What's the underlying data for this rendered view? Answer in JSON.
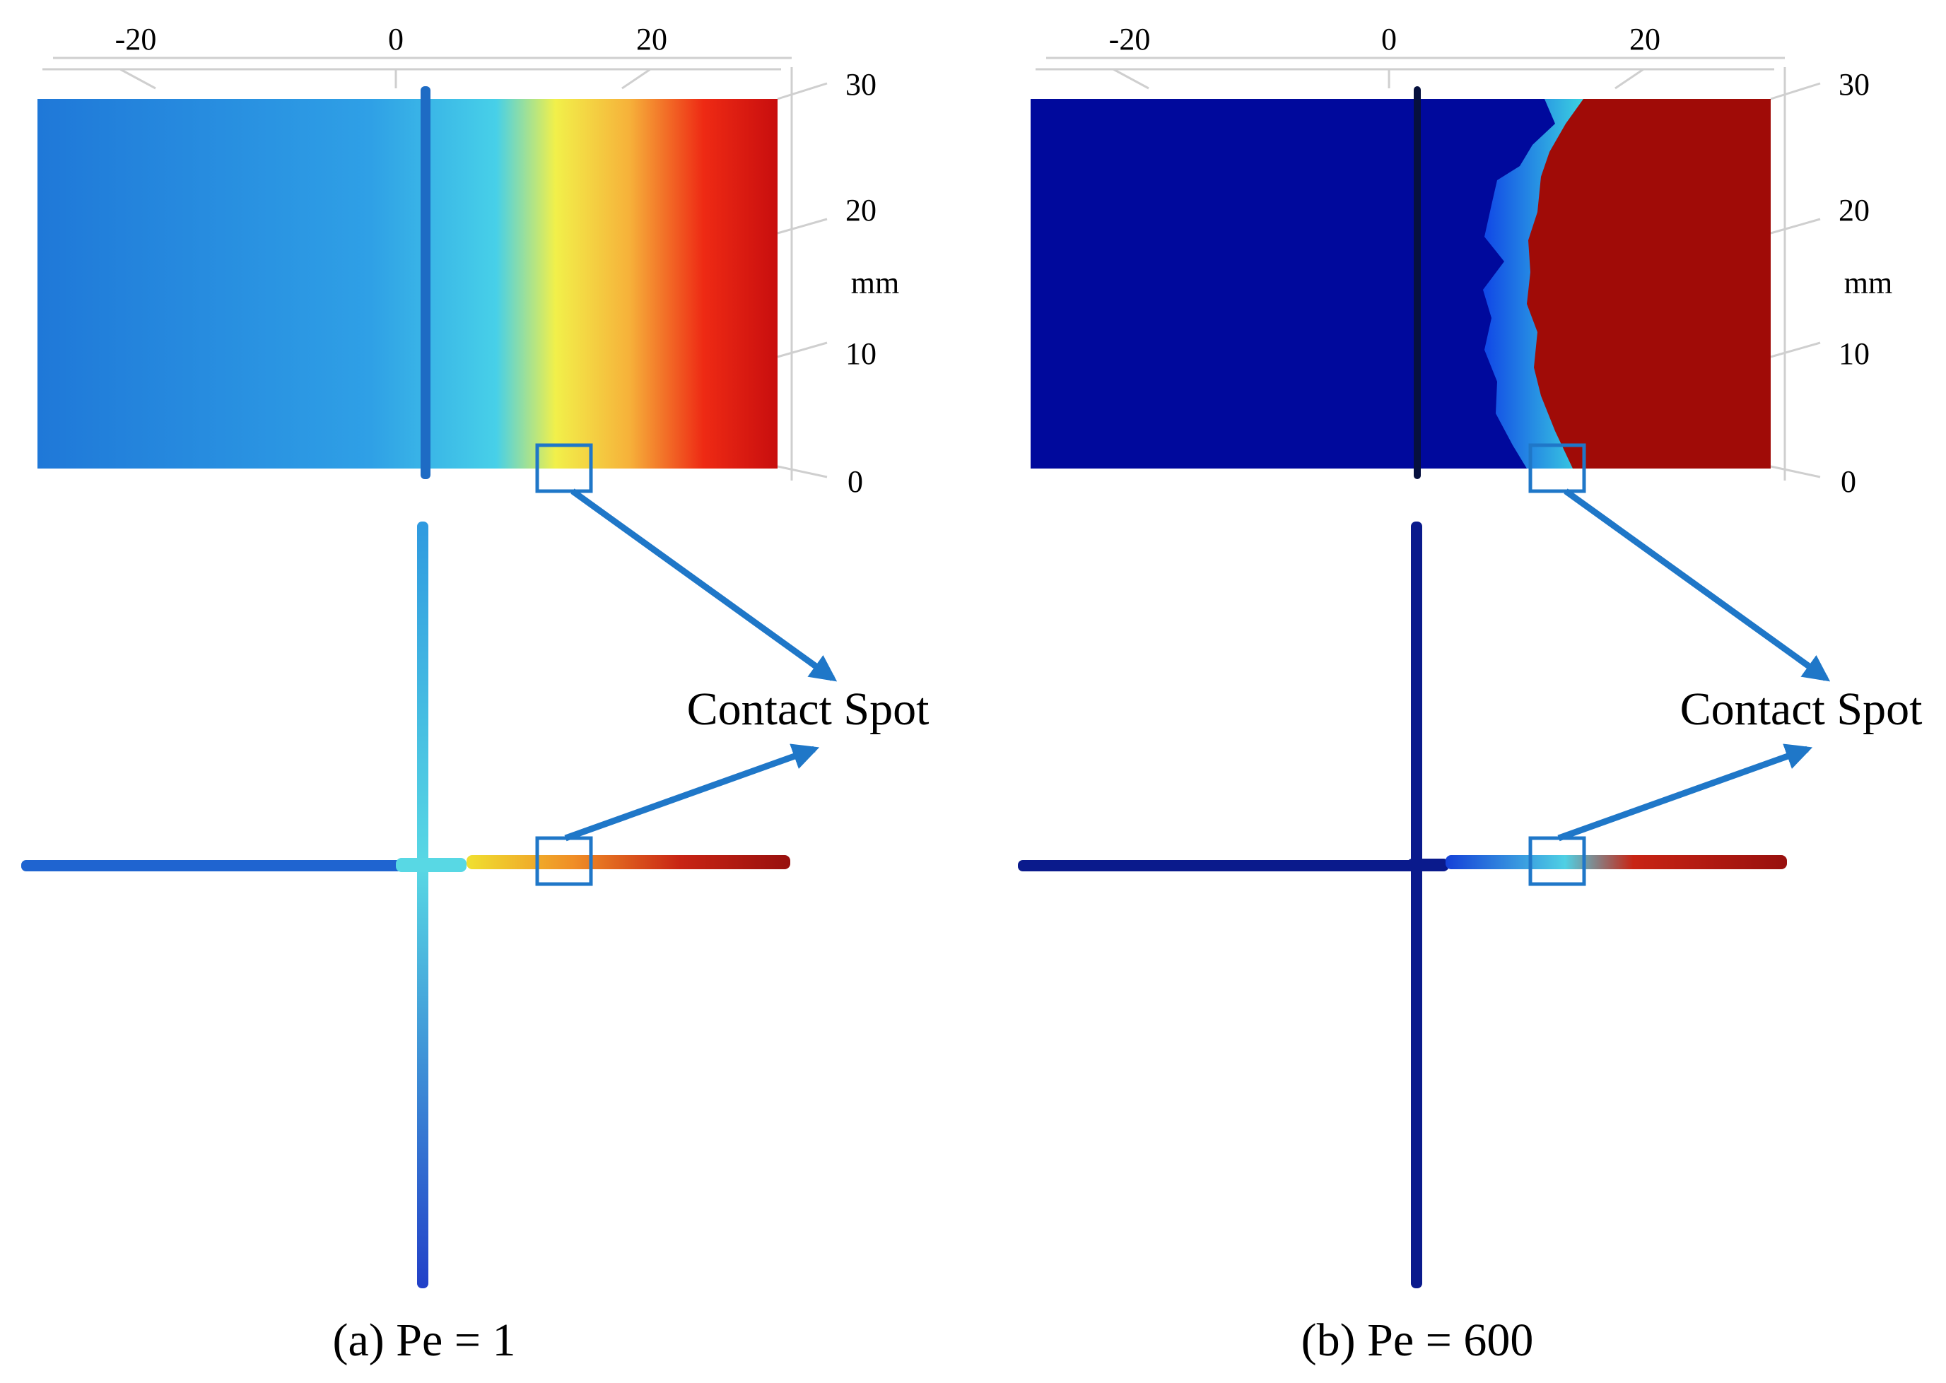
{
  "figure": {
    "callout_label": "Contact Spot",
    "highlight_color": "#1f77c8",
    "colormap": "jet (blue = low, red = high)",
    "panels": [
      {
        "id": "a",
        "caption": "(a) Pe = 1",
        "x_axis": {
          "ticks": [
            "-20",
            "0",
            "20"
          ]
        },
        "y_axis": {
          "ticks": [
            "30",
            "20",
            "10",
            "0"
          ],
          "unit": "mm"
        },
        "field_colors": [
          "#1f78d8",
          "#2fa0e6",
          "#47d0e8",
          "#f2f04a",
          "#f6b13a",
          "#ee2a14",
          "#c80e0e"
        ],
        "fracture_colors": {
          "left_arm": "#1f64d0",
          "center": "#58d8e4",
          "right_arm": [
            "#f0e030",
            "#f08e26",
            "#c82414",
            "#98100e"
          ],
          "upper_arm": "#2f9ae0",
          "lower_arm": "#2240c8"
        }
      },
      {
        "id": "b",
        "caption": "(b) Pe = 600",
        "x_axis": {
          "ticks": [
            "-20",
            "0",
            "20"
          ]
        },
        "y_axis": {
          "ticks": [
            "30",
            "20",
            "10",
            "0"
          ],
          "unit": "mm"
        },
        "field_colors": [
          "#00099c",
          "#1046e6",
          "#3cd3e0",
          "#cbd13c",
          "#d42c10",
          "#a00b07"
        ],
        "fracture_colors": {
          "left_arm": "#0a1a8c",
          "center": "#0a1a8c",
          "right_arm": [
            "#1440d8",
            "#4fd0e4",
            "#c82414",
            "#98100e"
          ],
          "upper_arm": "#0a1a8c",
          "lower_arm": "#0a1a8c"
        }
      }
    ]
  }
}
